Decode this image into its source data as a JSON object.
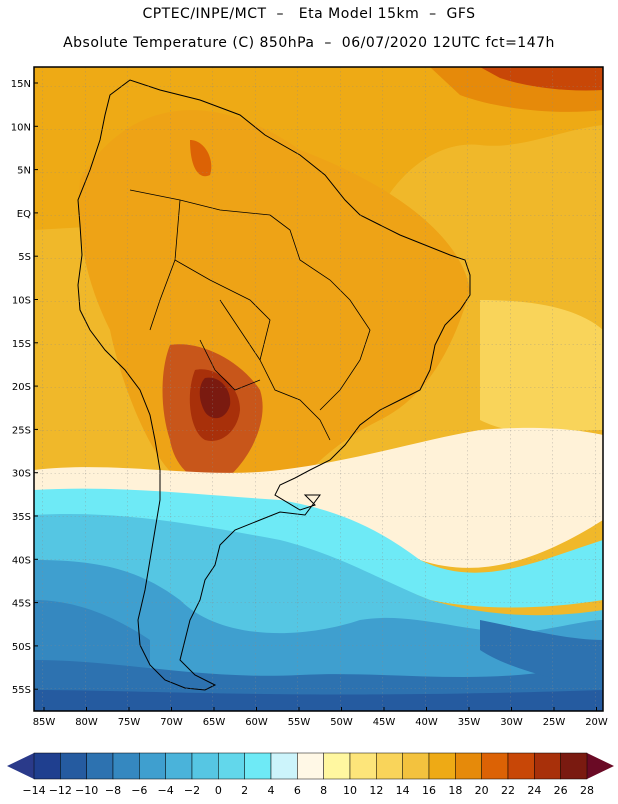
{
  "header": {
    "line1": "CPTEC/INPE/MCT  –   Eta Model 15km  –  GFS",
    "line2": "Absolute Temperature (C) 850hPa  –  06/07/2020 12UTC fct=147h"
  },
  "map": {
    "lat_labels": [
      "15N",
      "10N",
      "5N",
      "EQ",
      "5S",
      "10S",
      "15S",
      "20S",
      "25S",
      "30S",
      "35S",
      "40S",
      "45S",
      "50S",
      "55S"
    ],
    "lon_labels": [
      "85W",
      "80W",
      "75W",
      "70W",
      "65W",
      "60W",
      "55W",
      "50W",
      "45W",
      "40W",
      "35W",
      "30W",
      "25W",
      "20W"
    ],
    "lat_range": [
      17,
      -58
    ],
    "lon_range": [
      -87,
      -19
    ],
    "land_outline": "south-america-coastline"
  },
  "colorbar": {
    "labels": [
      "-14",
      "-12",
      "-10",
      "-8",
      "-6",
      "-4",
      "-2",
      "0",
      "2",
      "4",
      "6",
      "8",
      "10",
      "12",
      "14",
      "16",
      "18",
      "20",
      "22",
      "24",
      "26",
      "28"
    ],
    "colors": [
      "#1f3f8f",
      "#255ba0",
      "#2d72b0",
      "#3588c0",
      "#3f9fcf",
      "#4ab3da",
      "#56c6e3",
      "#62d7eb",
      "#6eeaf6",
      "#ccf4fb",
      "#fff8e6",
      "#fff7a0",
      "#fde57a",
      "#f9d45a",
      "#f3c23e",
      "#eeaa15",
      "#e68a0a",
      "#dc6205",
      "#c84707",
      "#a8300a",
      "#7a1a10"
    ],
    "left_arrow_color": "#2a3a8a",
    "right_arrow_color": "#6a0a25"
  },
  "colors": {
    "sea_warm": "#f0b82a",
    "land_warm": "#eea316",
    "hot": "#c8561a",
    "very_hot": "#7a1a10",
    "cold_deep": "#2a5ba0",
    "cold_mid": "#3c9ccf",
    "cold_light": "#55c6e3",
    "cyan": "#78eef6",
    "pale": "#fff2d8",
    "yellow": "#f9dd60"
  }
}
